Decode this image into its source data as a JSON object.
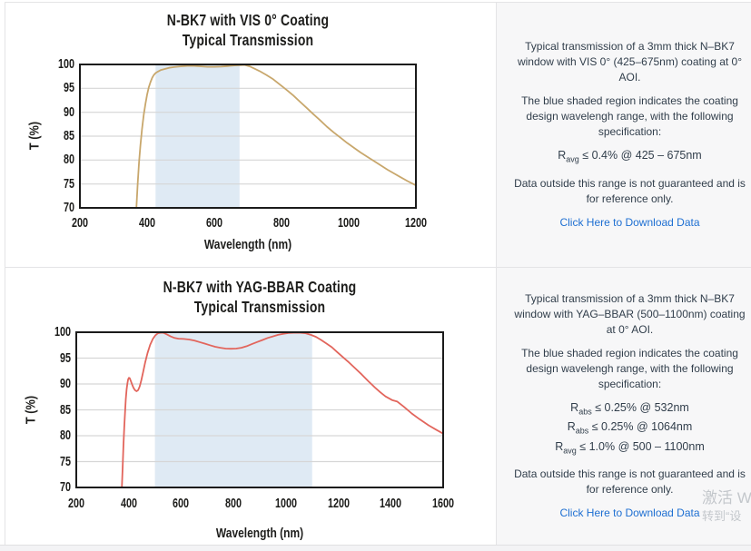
{
  "chart_data": [
    {
      "type": "line",
      "title_line1": "N-BK7 with VIS 0° Coating",
      "title_line2": "Typical Transmission",
      "xlabel": "Wavelength (nm)",
      "ylabel": "T (%)",
      "xlim": [
        200,
        1200
      ],
      "ylim": [
        70,
        100
      ],
      "xticks": [
        200,
        400,
        600,
        800,
        1000,
        1200
      ],
      "yticks": [
        70,
        75,
        80,
        85,
        90,
        95,
        100
      ],
      "grid": "horizontal",
      "legend": "none",
      "shaded_region": {
        "x0": 425,
        "x1": 675,
        "color": "#dfeaf4",
        "meaning": "coating design wavelength range"
      },
      "line_color": "#c8a76c",
      "series_name": "Typical Transmission",
      "points": [
        [
          368,
          70
        ],
        [
          372,
          75
        ],
        [
          376,
          79.5
        ],
        [
          380,
          83
        ],
        [
          385,
          86.5
        ],
        [
          390,
          89.5
        ],
        [
          395,
          91.8
        ],
        [
          400,
          93.7
        ],
        [
          405,
          95.2
        ],
        [
          410,
          96.3
        ],
        [
          415,
          97.2
        ],
        [
          420,
          97.8
        ],
        [
          425,
          98.2
        ],
        [
          432,
          98.5
        ],
        [
          440,
          98.8
        ],
        [
          450,
          99.0
        ],
        [
          465,
          99.3
        ],
        [
          480,
          99.45
        ],
        [
          500,
          99.6
        ],
        [
          520,
          99.7
        ],
        [
          540,
          99.7
        ],
        [
          560,
          99.6
        ],
        [
          580,
          99.5
        ],
        [
          600,
          99.5
        ],
        [
          620,
          99.55
        ],
        [
          640,
          99.65
        ],
        [
          660,
          99.8
        ],
        [
          675,
          99.85
        ],
        [
          690,
          99.9
        ],
        [
          705,
          99.6
        ],
        [
          720,
          99.1
        ],
        [
          735,
          98.6
        ],
        [
          755,
          97.8
        ],
        [
          775,
          96.9
        ],
        [
          795,
          95.8
        ],
        [
          815,
          94.7
        ],
        [
          835,
          93.5
        ],
        [
          855,
          92.2
        ],
        [
          875,
          90.9
        ],
        [
          895,
          89.6
        ],
        [
          915,
          88.3
        ],
        [
          935,
          87.0
        ],
        [
          955,
          85.8
        ],
        [
          975,
          84.7
        ],
        [
          995,
          83.6
        ],
        [
          1015,
          82.6
        ],
        [
          1035,
          81.6
        ],
        [
          1055,
          80.7
        ],
        [
          1075,
          79.8
        ],
        [
          1095,
          78.9
        ],
        [
          1115,
          78.0
        ],
        [
          1135,
          77.2
        ],
        [
          1155,
          76.4
        ],
        [
          1175,
          75.6
        ],
        [
          1200,
          74.7
        ]
      ]
    },
    {
      "type": "line",
      "title_line1": "N-BK7 with YAG-BBAR Coating",
      "title_line2": "Typical Transmission",
      "xlabel": "Wavelength (nm)",
      "ylabel": "T (%)",
      "xlim": [
        200,
        1600
      ],
      "ylim": [
        70,
        100
      ],
      "xticks": [
        200,
        400,
        600,
        800,
        1000,
        1200,
        1400,
        1600
      ],
      "yticks": [
        70,
        75,
        80,
        85,
        90,
        95,
        100
      ],
      "grid": "horizontal",
      "legend": "none",
      "shaded_region": {
        "x0": 500,
        "x1": 1100,
        "color": "#dfeaf4",
        "meaning": "coating design wavelength range"
      },
      "line_color": "#e2655c",
      "series_name": "Typical Transmission",
      "points": [
        [
          374,
          70
        ],
        [
          377,
          74
        ],
        [
          380,
          78
        ],
        [
          383,
          81.5
        ],
        [
          386,
          84.5
        ],
        [
          389,
          87
        ],
        [
          392,
          88.9
        ],
        [
          395,
          90.1
        ],
        [
          398,
          90.9
        ],
        [
          401,
          91.2
        ],
        [
          404,
          91.1
        ],
        [
          408,
          90.6
        ],
        [
          413,
          89.9
        ],
        [
          418,
          89.3
        ],
        [
          424,
          88.8
        ],
        [
          430,
          88.6
        ],
        [
          436,
          88.8
        ],
        [
          442,
          89.5
        ],
        [
          448,
          90.7
        ],
        [
          455,
          92.3
        ],
        [
          463,
          94.2
        ],
        [
          472,
          96.0
        ],
        [
          482,
          97.6
        ],
        [
          492,
          98.7
        ],
        [
          502,
          99.4
        ],
        [
          512,
          99.8
        ],
        [
          522,
          99.9
        ],
        [
          532,
          99.9
        ],
        [
          545,
          99.6
        ],
        [
          560,
          99.2
        ],
        [
          575,
          98.9
        ],
        [
          590,
          98.75
        ],
        [
          610,
          98.7
        ],
        [
          630,
          98.6
        ],
        [
          650,
          98.4
        ],
        [
          670,
          98.1
        ],
        [
          690,
          97.8
        ],
        [
          710,
          97.5
        ],
        [
          730,
          97.2
        ],
        [
          750,
          97.0
        ],
        [
          770,
          96.85
        ],
        [
          790,
          96.8
        ],
        [
          810,
          96.85
        ],
        [
          830,
          97.0
        ],
        [
          850,
          97.3
        ],
        [
          870,
          97.7
        ],
        [
          890,
          98.1
        ],
        [
          910,
          98.5
        ],
        [
          930,
          98.9
        ],
        [
          950,
          99.2
        ],
        [
          970,
          99.5
        ],
        [
          990,
          99.7
        ],
        [
          1010,
          99.85
        ],
        [
          1030,
          99.9
        ],
        [
          1055,
          99.9
        ],
        [
          1075,
          99.8
        ],
        [
          1095,
          99.5
        ],
        [
          1115,
          99.1
        ],
        [
          1135,
          98.5
        ],
        [
          1155,
          97.8
        ],
        [
          1175,
          97.1
        ],
        [
          1195,
          96.2
        ],
        [
          1215,
          95.3
        ],
        [
          1240,
          94.2
        ],
        [
          1265,
          93.0
        ],
        [
          1290,
          91.8
        ],
        [
          1315,
          90.5
        ],
        [
          1340,
          89.3
        ],
        [
          1360,
          88.4
        ],
        [
          1380,
          87.6
        ],
        [
          1405,
          86.9
        ],
        [
          1425,
          86.6
        ],
        [
          1450,
          85.6
        ],
        [
          1480,
          84.3
        ],
        [
          1510,
          83.2
        ],
        [
          1545,
          82.0
        ],
        [
          1575,
          81.1
        ],
        [
          1600,
          80.4
        ]
      ]
    }
  ],
  "panels": [
    {
      "p1": "Typical transmission of a 3mm thick N–BK7 window with VIS 0° (425–675nm) coating at 0° AOI.",
      "p2": "The blue shaded region indicates the coating design wavelengh range, with the following specification:",
      "specs": [
        {
          "base": "R",
          "sub": "avg",
          "rest": " ≤ 0.4% @ 425 – 675nm"
        }
      ],
      "p3": "Data outside this range is not guaranteed and is for reference only.",
      "link": "Click Here to Download Data"
    },
    {
      "p1": "Typical transmission of a 3mm thick N–BK7 window with YAG–BBAR (500–1100nm) coating at 0° AOI.",
      "p2": "The blue shaded region indicates the coating design wavelengh range, with the following specification:",
      "specs": [
        {
          "base": "R",
          "sub": "abs",
          "rest": " ≤ 0.25% @ 532nm"
        },
        {
          "base": "R",
          "sub": "abs",
          "rest": " ≤ 0.25% @ 1064nm"
        },
        {
          "base": "R",
          "sub": "avg",
          "rest": " ≤ 1.0% @ 500 – 1100nm"
        }
      ],
      "p3": "Data outside this range is not guaranteed and is for reference only.",
      "link": "Click Here to Download Data"
    }
  ],
  "activation_watermark": {
    "line1": "激活 W",
    "line2": "转到“设"
  },
  "colors": {
    "vis_curve": "#c8a76c",
    "yag_curve": "#e2655c",
    "shaded_region": "#dfeaf4",
    "link": "#1e6fd2",
    "panel_bg": "#f7f7f8",
    "plot_border": "#1b1b1b",
    "gridline": "#d6d6d6"
  }
}
